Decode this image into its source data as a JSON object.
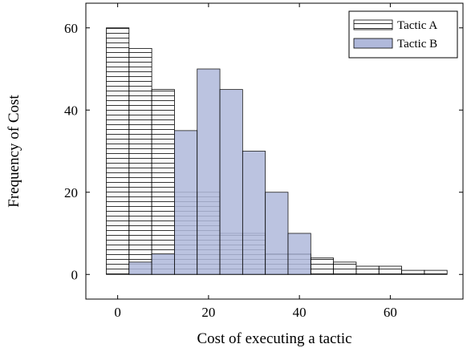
{
  "chart_data": {
    "type": "bar",
    "xlabel": "Cost of executing a tactic",
    "ylabel": "Frequency of Cost",
    "xlim": [
      -7,
      76
    ],
    "ylim": [
      -6,
      66
    ],
    "x_ticks": [
      0,
      20,
      40,
      60
    ],
    "y_ticks": [
      0,
      20,
      40,
      60
    ],
    "bin_width": 5,
    "grid": false,
    "legend_position": "top-right",
    "series": [
      {
        "name": "Tactic A",
        "style": "horizontal-hatch",
        "color": "#000000",
        "bin_starts": [
          -2.5,
          2.5,
          7.5,
          12.5,
          17.5,
          22.5,
          27.5,
          32.5,
          37.5,
          42.5,
          47.5,
          52.5,
          57.5,
          62.5,
          67.5
        ],
        "values": [
          60,
          55,
          45,
          20,
          20,
          10,
          10,
          5,
          5,
          4,
          3,
          2,
          2,
          1,
          1
        ]
      },
      {
        "name": "Tactic B",
        "style": "filled",
        "color": "#b0b9db",
        "bin_starts": [
          2.5,
          7.5,
          12.5,
          17.5,
          22.5,
          27.5,
          32.5,
          37.5
        ],
        "values": [
          3,
          5,
          35,
          50,
          45,
          30,
          20,
          10
        ]
      }
    ]
  }
}
